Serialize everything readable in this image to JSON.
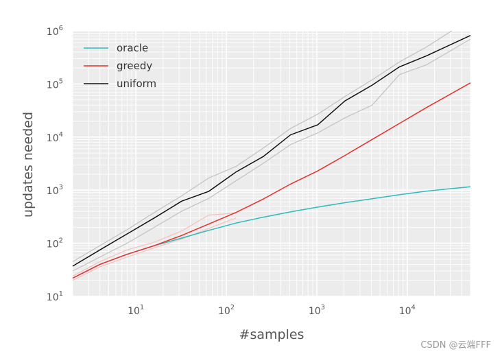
{
  "chart_data": {
    "type": "line",
    "xlabel": "#samples",
    "ylabel": "updates needed",
    "xscale": "log",
    "yscale": "log",
    "xlim": [
      2,
      50000
    ],
    "ylim": [
      10,
      1000000
    ],
    "grid": true,
    "legend_position": "top-left",
    "x_ticks": [
      {
        "base": "10",
        "exp": "1",
        "value": 10
      },
      {
        "base": "10",
        "exp": "2",
        "value": 100
      },
      {
        "base": "10",
        "exp": "3",
        "value": 1000
      },
      {
        "base": "10",
        "exp": "4",
        "value": 10000
      }
    ],
    "y_ticks": [
      {
        "base": "10",
        "exp": "1",
        "value": 10
      },
      {
        "base": "10",
        "exp": "2",
        "value": 100
      },
      {
        "base": "10",
        "exp": "3",
        "value": 1000
      },
      {
        "base": "10",
        "exp": "4",
        "value": 10000
      },
      {
        "base": "10",
        "exp": "5",
        "value": 100000
      },
      {
        "base": "10",
        "exp": "6",
        "value": 1000000
      }
    ],
    "series": [
      {
        "name": "oracle",
        "color": "#2bbcbc",
        "x": [
          2,
          4,
          8,
          16,
          32,
          64,
          128,
          256,
          512,
          1024,
          2048,
          4096,
          8192,
          16384,
          50000
        ],
        "y": [
          22,
          40,
          62,
          90,
          125,
          175,
          240,
          310,
          390,
          480,
          580,
          690,
          820,
          960,
          1160
        ]
      },
      {
        "name": "greedy",
        "color": "#e8302a",
        "x": [
          2,
          4,
          8,
          16,
          32,
          64,
          128,
          256,
          512,
          1024,
          2048,
          4096,
          8192,
          16384,
          50000
        ],
        "y": [
          22,
          40,
          62,
          90,
          140,
          230,
          380,
          680,
          1300,
          2300,
          4500,
          9000,
          18000,
          36000,
          105000
        ]
      },
      {
        "name": "uniform",
        "color": "#111111",
        "x": [
          2,
          4,
          8,
          16,
          32,
          64,
          128,
          256,
          512,
          1024,
          2048,
          4096,
          8192,
          16384,
          50000
        ],
        "y": [
          37,
          75,
          150,
          300,
          620,
          950,
          2200,
          4300,
          11000,
          17000,
          48000,
          95000,
          210000,
          340000,
          820000
        ]
      }
    ],
    "bands": [
      {
        "color": "#c4c4c4",
        "x": [
          2,
          4,
          8,
          16,
          32,
          64,
          128,
          256,
          512,
          1024,
          2048,
          4096,
          8192,
          16384,
          31000
        ],
        "y": [
          45,
          90,
          180,
          380,
          780,
          1700,
          2800,
          6200,
          14500,
          27000,
          58000,
          120000,
          260000,
          500000,
          1000000
        ]
      },
      {
        "color": "#c4c4c4",
        "x": [
          2,
          4,
          8,
          16,
          32,
          64,
          128,
          256,
          512,
          1024,
          2048,
          4096,
          8192,
          16384,
          50000
        ],
        "y": [
          30,
          55,
          100,
          200,
          400,
          700,
          1500,
          3200,
          7200,
          12000,
          23000,
          40000,
          150000,
          230000,
          700000
        ]
      },
      {
        "color": "#f5c2c2",
        "x": [
          2,
          4,
          8,
          16,
          32,
          64,
          128
        ],
        "y": [
          24,
          45,
          75,
          105,
          170,
          340,
          370
        ]
      },
      {
        "color": "#f5c2c2",
        "x": [
          2,
          4,
          8,
          16,
          32,
          64,
          128
        ],
        "y": [
          20,
          36,
          55,
          82,
          120,
          190,
          300
        ]
      }
    ]
  },
  "watermark": "CSDN @云端FFF"
}
